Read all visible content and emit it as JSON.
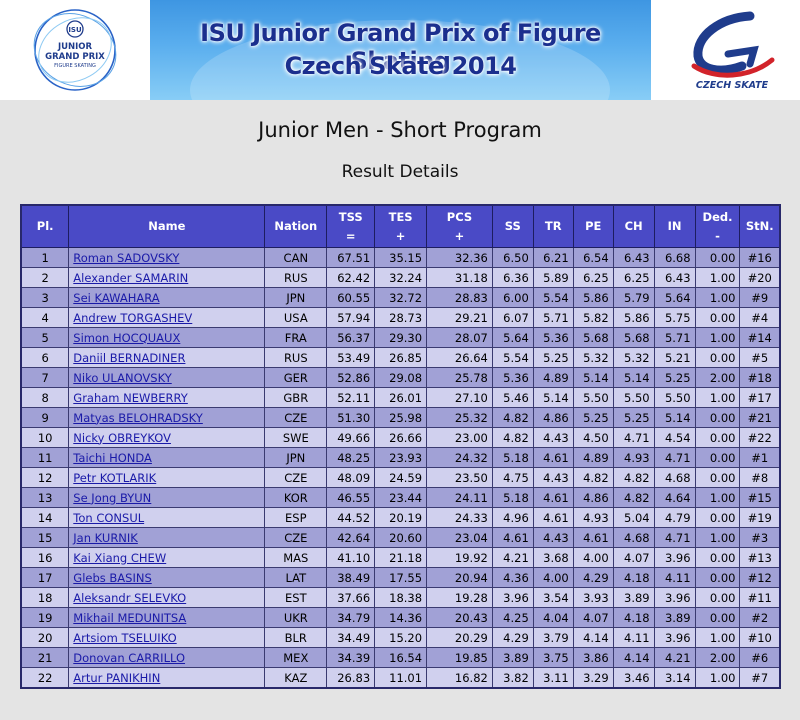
{
  "header": {
    "banner_line1": "ISU Junior Grand Prix of Figure Skating",
    "banner_line2": "Czech Skate 2014",
    "left_logo_text": [
      "ISU",
      "JUNIOR",
      "GRAND PRIX",
      "FIGURE SKATING"
    ],
    "right_logo_text": "CZECH SKATE",
    "colors": {
      "banner_text": "#1b2f8e",
      "banner_sky": "#5aaeee",
      "logo_red": "#d2232a",
      "logo_blue": "#1f3c8c"
    }
  },
  "page_title": "Junior Men - Short Program",
  "page_subtitle": "Result Details",
  "table": {
    "columns": [
      {
        "l1": "Pl.",
        "l2": ""
      },
      {
        "l1": "Name",
        "l2": ""
      },
      {
        "l1": "Nation",
        "l2": ""
      },
      {
        "l1": "TSS",
        "l2": "="
      },
      {
        "l1": "TES",
        "l2": "+"
      },
      {
        "l1": "PCS",
        "l2": "+"
      },
      {
        "l1": "SS",
        "l2": ""
      },
      {
        "l1": "TR",
        "l2": ""
      },
      {
        "l1": "PE",
        "l2": ""
      },
      {
        "l1": "CH",
        "l2": ""
      },
      {
        "l1": "IN",
        "l2": ""
      },
      {
        "l1": "Ded.",
        "l2": "-"
      },
      {
        "l1": "StN.",
        "l2": ""
      }
    ],
    "rows": [
      [
        "1",
        "Roman SADOVSKY",
        "CAN",
        "67.51",
        "35.15",
        "32.36",
        "6.50",
        "6.21",
        "6.54",
        "6.43",
        "6.68",
        "0.00",
        "#16"
      ],
      [
        "2",
        "Alexander SAMARIN",
        "RUS",
        "62.42",
        "32.24",
        "31.18",
        "6.36",
        "5.89",
        "6.25",
        "6.25",
        "6.43",
        "1.00",
        "#20"
      ],
      [
        "3",
        "Sei KAWAHARA",
        "JPN",
        "60.55",
        "32.72",
        "28.83",
        "6.00",
        "5.54",
        "5.86",
        "5.79",
        "5.64",
        "1.00",
        "#9"
      ],
      [
        "4",
        "Andrew TORGASHEV",
        "USA",
        "57.94",
        "28.73",
        "29.21",
        "6.07",
        "5.71",
        "5.82",
        "5.86",
        "5.75",
        "0.00",
        "#4"
      ],
      [
        "5",
        "Simon HOCQUAUX",
        "FRA",
        "56.37",
        "29.30",
        "28.07",
        "5.64",
        "5.36",
        "5.68",
        "5.68",
        "5.71",
        "1.00",
        "#14"
      ],
      [
        "6",
        "Daniil BERNADINER",
        "RUS",
        "53.49",
        "26.85",
        "26.64",
        "5.54",
        "5.25",
        "5.32",
        "5.32",
        "5.21",
        "0.00",
        "#5"
      ],
      [
        "7",
        "Niko ULANOVSKY",
        "GER",
        "52.86",
        "29.08",
        "25.78",
        "5.36",
        "4.89",
        "5.14",
        "5.14",
        "5.25",
        "2.00",
        "#18"
      ],
      [
        "8",
        "Graham NEWBERRY",
        "GBR",
        "52.11",
        "26.01",
        "27.10",
        "5.46",
        "5.14",
        "5.50",
        "5.50",
        "5.50",
        "1.00",
        "#17"
      ],
      [
        "9",
        "Matyas BELOHRADSKY",
        "CZE",
        "51.30",
        "25.98",
        "25.32",
        "4.82",
        "4.86",
        "5.25",
        "5.25",
        "5.14",
        "0.00",
        "#21"
      ],
      [
        "10",
        "Nicky OBREYKOV",
        "SWE",
        "49.66",
        "26.66",
        "23.00",
        "4.82",
        "4.43",
        "4.50",
        "4.71",
        "4.54",
        "0.00",
        "#22"
      ],
      [
        "11",
        "Taichi HONDA",
        "JPN",
        "48.25",
        "23.93",
        "24.32",
        "5.18",
        "4.61",
        "4.89",
        "4.93",
        "4.71",
        "0.00",
        "#1"
      ],
      [
        "12",
        "Petr KOTLARIK",
        "CZE",
        "48.09",
        "24.59",
        "23.50",
        "4.75",
        "4.43",
        "4.82",
        "4.82",
        "4.68",
        "0.00",
        "#8"
      ],
      [
        "13",
        "Se Jong BYUN",
        "KOR",
        "46.55",
        "23.44",
        "24.11",
        "5.18",
        "4.61",
        "4.86",
        "4.82",
        "4.64",
        "1.00",
        "#15"
      ],
      [
        "14",
        "Ton CONSUL",
        "ESP",
        "44.52",
        "20.19",
        "24.33",
        "4.96",
        "4.61",
        "4.93",
        "5.04",
        "4.79",
        "0.00",
        "#19"
      ],
      [
        "15",
        "Jan KURNIK",
        "CZE",
        "42.64",
        "20.60",
        "23.04",
        "4.61",
        "4.43",
        "4.61",
        "4.68",
        "4.71",
        "1.00",
        "#3"
      ],
      [
        "16",
        "Kai Xiang CHEW",
        "MAS",
        "41.10",
        "21.18",
        "19.92",
        "4.21",
        "3.68",
        "4.00",
        "4.07",
        "3.96",
        "0.00",
        "#13"
      ],
      [
        "17",
        "Glebs BASINS",
        "LAT",
        "38.49",
        "17.55",
        "20.94",
        "4.36",
        "4.00",
        "4.29",
        "4.18",
        "4.11",
        "0.00",
        "#12"
      ],
      [
        "18",
        "Aleksandr SELEVKO",
        "EST",
        "37.66",
        "18.38",
        "19.28",
        "3.96",
        "3.54",
        "3.93",
        "3.89",
        "3.96",
        "0.00",
        "#11"
      ],
      [
        "19",
        "Mikhail MEDUNITSA",
        "UKR",
        "34.79",
        "14.36",
        "20.43",
        "4.25",
        "4.04",
        "4.07",
        "4.18",
        "3.89",
        "0.00",
        "#2"
      ],
      [
        "20",
        "Artsiom TSELUIKO",
        "BLR",
        "34.49",
        "15.20",
        "20.29",
        "4.29",
        "3.79",
        "4.14",
        "4.11",
        "3.96",
        "1.00",
        "#10"
      ],
      [
        "21",
        "Donovan CARRILLO",
        "MEX",
        "34.39",
        "16.54",
        "19.85",
        "3.89",
        "3.75",
        "3.86",
        "4.14",
        "4.21",
        "2.00",
        "#6"
      ],
      [
        "22",
        "Artur PANIKHIN",
        "KAZ",
        "26.83",
        "11.01",
        "16.82",
        "3.82",
        "3.11",
        "3.29",
        "3.46",
        "3.14",
        "1.00",
        "#7"
      ]
    ]
  }
}
